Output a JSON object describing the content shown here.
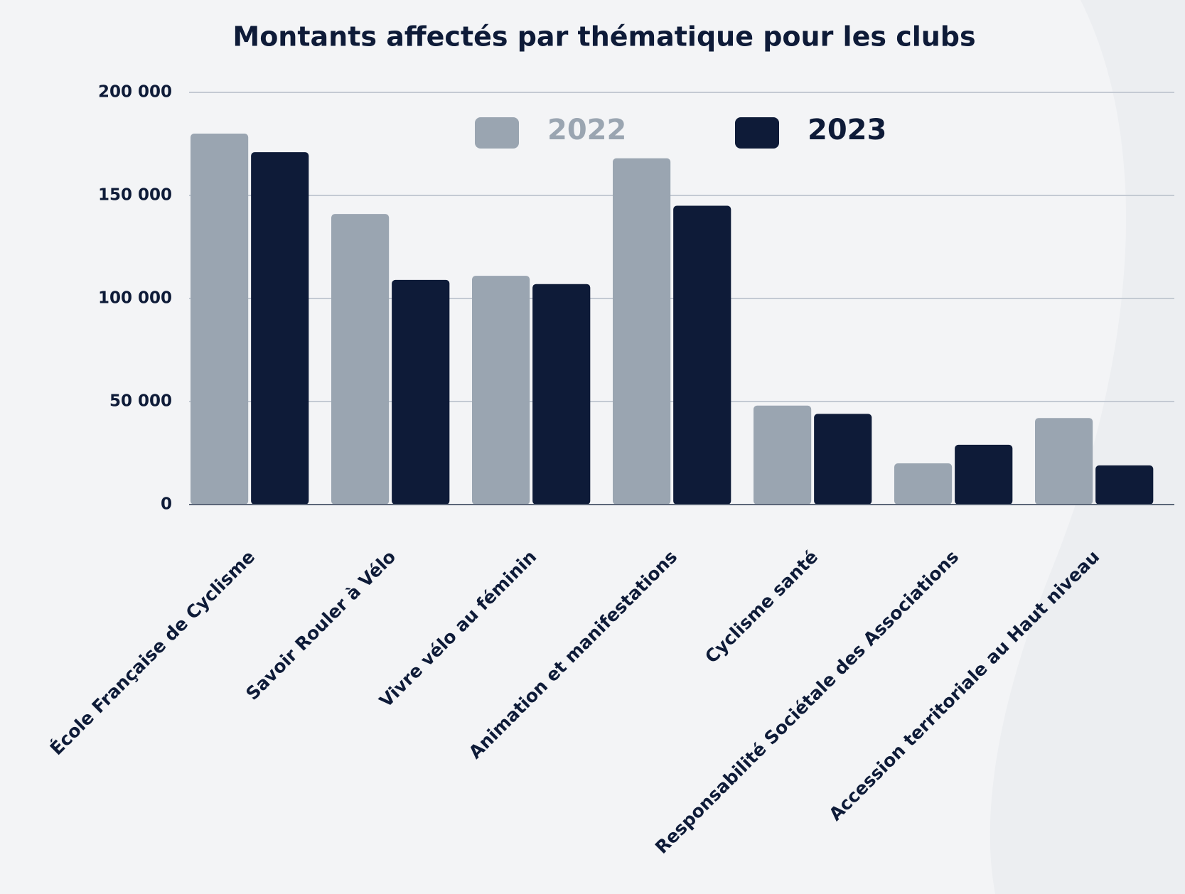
{
  "chart_data": {
    "type": "bar",
    "title": "Montants affectés par thématique pour les clubs",
    "categories": [
      "École Française de Cyclisme",
      "Savoir Rouler à Vélo",
      "Vivre vélo au féminin",
      "Animation et manifestations",
      "Cyclisme santé",
      "Responsabilité Sociétale des Associations",
      "Accession territoriale au Haut niveau"
    ],
    "series": [
      {
        "name": "2022",
        "color": "#9aa5b1",
        "values": [
          180000,
          141000,
          111000,
          168000,
          48000,
          20000,
          42000
        ]
      },
      {
        "name": "2023",
        "color": "#0e1b38",
        "values": [
          171000,
          109000,
          107000,
          145000,
          44000,
          29000,
          19000
        ]
      }
    ],
    "ylim": [
      0,
      200000
    ],
    "yticks": [
      0,
      {
        "value": 50000,
        "label": "50 000"
      },
      {
        "value": 100000,
        "label": "100 000"
      },
      {
        "value": 150000,
        "label": "150 000"
      },
      {
        "value": 200000,
        "label": "200 000"
      }
    ],
    "grid": true
  }
}
